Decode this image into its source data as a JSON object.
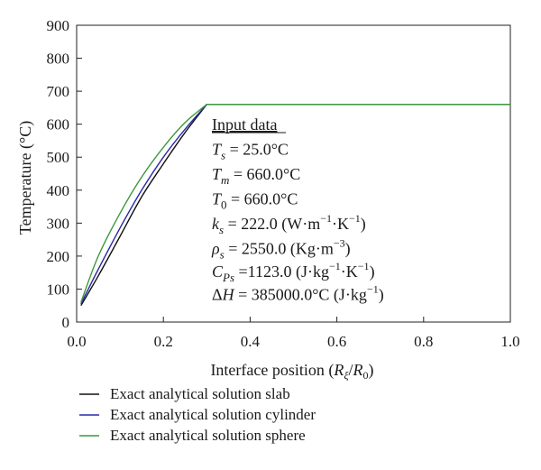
{
  "chart_data": {
    "type": "line",
    "title": "",
    "xlabel": "Interface position (R_ξ/R_0)",
    "ylabel": "Temperature (°C)",
    "xlim": [
      0.0,
      1.0
    ],
    "ylim": [
      0,
      900
    ],
    "grid": false,
    "legend_position": "bottom",
    "x_ticks": [
      "0.0",
      "0.2",
      "0.4",
      "0.6",
      "0.8",
      "1.0"
    ],
    "y_ticks": [
      "0",
      "100",
      "200",
      "300",
      "400",
      "500",
      "600",
      "700",
      "800",
      "900"
    ],
    "series": [
      {
        "name": "Exact analytical solution slab",
        "color": "#111111",
        "x": [
          0.01,
          0.05,
          0.1,
          0.15,
          0.2,
          0.25,
          0.3,
          0.4,
          0.6,
          0.8,
          1.0
        ],
        "y": [
          50,
          140,
          260,
          380,
          480,
          575,
          660,
          660,
          660,
          660,
          660
        ]
      },
      {
        "name": "Exact analytical solution cylinder",
        "color": "#2a2aa8",
        "x": [
          0.01,
          0.05,
          0.1,
          0.15,
          0.2,
          0.25,
          0.3,
          0.4,
          0.6,
          0.8,
          1.0
        ],
        "y": [
          55,
          160,
          285,
          400,
          500,
          585,
          660,
          660,
          660,
          660,
          660
        ]
      },
      {
        "name": "Exact analytical solution sphere",
        "color": "#3a9a3a",
        "x": [
          0.01,
          0.05,
          0.1,
          0.15,
          0.2,
          0.25,
          0.3,
          0.4,
          0.6,
          0.8,
          1.0
        ],
        "y": [
          60,
          200,
          330,
          440,
          530,
          605,
          660,
          660,
          660,
          660,
          660
        ]
      }
    ],
    "annotations": {
      "heading": "Input data",
      "lines": [
        "T_s = 25.0°C",
        "T_m = 660.0°C",
        "T_0 = 660.0°C",
        "k_s = 222.0 (W·m⁻¹·K⁻¹)",
        "ρ_s = 2550.0 (Kg·m⁻³)",
        "C_Ps =1123.0 (J·kg⁻¹·K⁻¹)",
        "ΔH = 385000.0°C (J·kg⁻¹)"
      ]
    }
  }
}
